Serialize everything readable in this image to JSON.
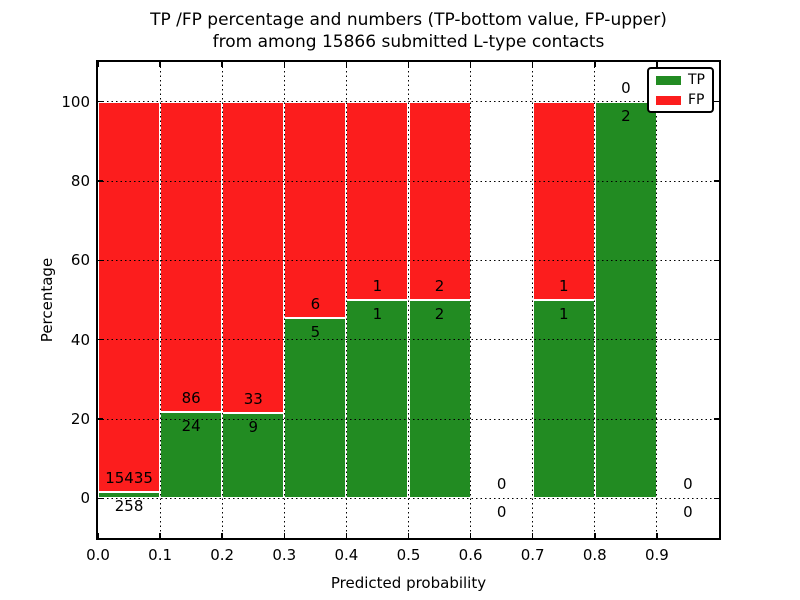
{
  "chart_data": {
    "type": "bar",
    "stacked": true,
    "title": "TP /FP percentage and numbers (TP-bottom value, FP-upper)",
    "subtitle": "from among 15866 submitted L-type contacts",
    "xlabel": "Predicted probability",
    "ylabel": "Percentage",
    "xlim": [
      0.0,
      1.0
    ],
    "ylim": [
      -10,
      110
    ],
    "xticks": [
      "0.0",
      "0.1",
      "0.2",
      "0.3",
      "0.4",
      "0.5",
      "0.6",
      "0.7",
      "0.8",
      "0.9"
    ],
    "yticks": [
      "0",
      "20",
      "40",
      "60",
      "80",
      "100"
    ],
    "grid_style": "dotted",
    "bar_edge_color": "#ffffff",
    "colors": {
      "tp": "#228b22",
      "fp": "#fc1d1d"
    },
    "legend": {
      "position": "upper-right",
      "entries": [
        {
          "label": "TP",
          "color": "#228b22"
        },
        {
          "label": "FP",
          "color": "#fc1d1d"
        }
      ]
    },
    "bins": [
      {
        "range": [
          0.0,
          0.1
        ],
        "tp": 258,
        "fp": 15435
      },
      {
        "range": [
          0.1,
          0.2
        ],
        "tp": 24,
        "fp": 86
      },
      {
        "range": [
          0.2,
          0.3
        ],
        "tp": 9,
        "fp": 33
      },
      {
        "range": [
          0.3,
          0.4
        ],
        "tp": 5,
        "fp": 6
      },
      {
        "range": [
          0.4,
          0.5
        ],
        "tp": 1,
        "fp": 1
      },
      {
        "range": [
          0.5,
          0.6
        ],
        "tp": 2,
        "fp": 2
      },
      {
        "range": [
          0.6,
          0.7
        ],
        "tp": 0,
        "fp": 0
      },
      {
        "range": [
          0.7,
          0.8
        ],
        "tp": 1,
        "fp": 1
      },
      {
        "range": [
          0.8,
          0.9
        ],
        "tp": 2,
        "fp": 0
      },
      {
        "range": [
          0.9,
          1.0
        ],
        "tp": 0,
        "fp": 0
      }
    ]
  }
}
